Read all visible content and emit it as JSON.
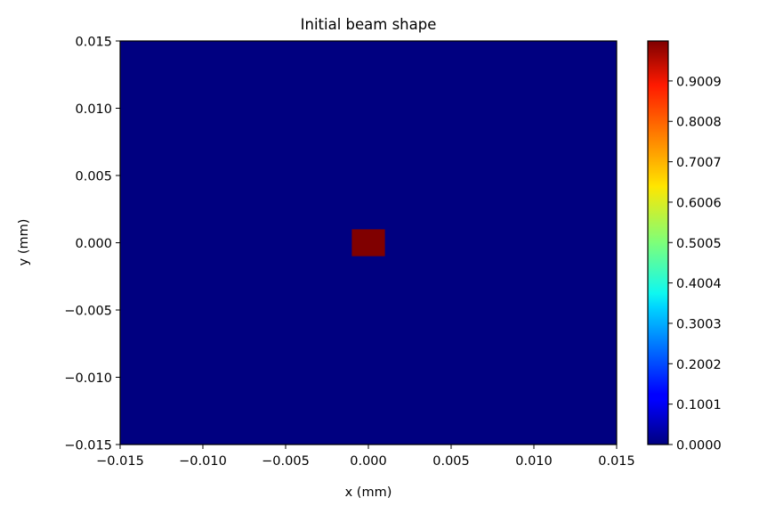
{
  "chart_data": {
    "type": "heatmap",
    "title": "Initial beam shape",
    "xlabel": "x (mm)",
    "ylabel": "y (mm)",
    "xlim": [
      -0.015,
      0.015
    ],
    "ylim": [
      -0.015,
      0.015
    ],
    "x_ticks": [
      -0.015,
      -0.01,
      -0.005,
      0.0,
      0.005,
      0.01,
      0.015
    ],
    "y_ticks": [
      -0.015,
      -0.01,
      -0.005,
      0.0,
      0.005,
      0.01,
      0.015
    ],
    "x_tick_labels": [
      "−0.015",
      "−0.010",
      "−0.005",
      "0.000",
      "0.005",
      "0.010",
      "0.015"
    ],
    "y_tick_labels": [
      "−0.015",
      "−0.010",
      "−0.005",
      "0.000",
      "0.005",
      "0.010",
      "0.015"
    ],
    "background_value": 0.0,
    "cells": [
      {
        "x": [
          -0.001,
          0.001
        ],
        "y": [
          -0.001,
          0.001
        ],
        "value": 1.0
      }
    ],
    "colormap": "jet",
    "colorbar": {
      "range": [
        0.0,
        1.0
      ],
      "ticks": [
        0.0,
        0.1001,
        0.2002,
        0.3003,
        0.4004,
        0.5005,
        0.6006,
        0.7007,
        0.8008,
        0.9009
      ],
      "tick_labels": [
        "0.0000",
        "0.1001",
        "0.2002",
        "0.3003",
        "0.4004",
        "0.5005",
        "0.6006",
        "0.7007",
        "0.8008",
        "0.9009"
      ]
    },
    "grid": false
  }
}
